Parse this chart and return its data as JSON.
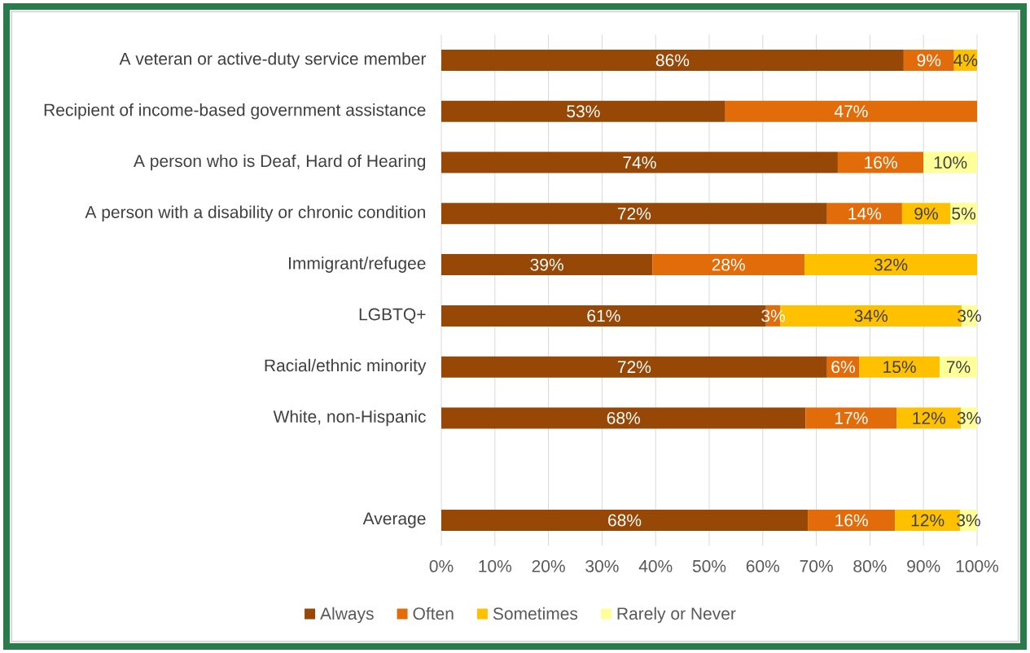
{
  "chart_data": {
    "type": "bar",
    "orientation": "horizontal",
    "stacked": true,
    "categories": [
      "A veteran or active-duty service member",
      "Recipient of income-based government assistance",
      "A person who is Deaf, Hard of Hearing",
      "A person with a disability or chronic condition",
      "Immigrant/refugee",
      "LGBTQ+",
      "Racial/ethnic minority",
      "White, non-Hispanic",
      null,
      "Average"
    ],
    "series": [
      {
        "name": "Always",
        "color": "#974706",
        "values": [
          86.3,
          53,
          74,
          72,
          39.4,
          60.6,
          72,
          68,
          null,
          68.4
        ],
        "value_labels": [
          "86%",
          "53%",
          "74%",
          "72%",
          "39%",
          "61%",
          "72%",
          "68%",
          null,
          "68%"
        ]
      },
      {
        "name": "Often",
        "color": "#e36c0a",
        "values": [
          9.4,
          47,
          16,
          14,
          28.4,
          2.7,
          6,
          17,
          null,
          16.3
        ],
        "value_labels": [
          "9%",
          "47%",
          "16%",
          "14%",
          "28%",
          "3%",
          "6%",
          "17%",
          null,
          "16%"
        ]
      },
      {
        "name": "Sometimes",
        "color": "#ffc000",
        "values": [
          4.3,
          null,
          null,
          9,
          32.2,
          33.8,
          15,
          12,
          null,
          12.1
        ],
        "value_labels": [
          "4%",
          null,
          null,
          "9%",
          "32%",
          "34%",
          "15%",
          "12%",
          null,
          "12%"
        ]
      },
      {
        "name": "Rarely or Never",
        "color": "#ffff99",
        "values": [
          null,
          null,
          10,
          5,
          null,
          2.9,
          7,
          3,
          null,
          3.2
        ],
        "value_labels": [
          null,
          null,
          "10%",
          "5%",
          null,
          "3%",
          "7%",
          "3%",
          null,
          "3%"
        ]
      }
    ],
    "xlim": [
      0,
      100
    ],
    "xticks": [
      {
        "value": 0,
        "label": "0%"
      },
      {
        "value": 10,
        "label": "10%"
      },
      {
        "value": 20,
        "label": "20%"
      },
      {
        "value": 30,
        "label": "30%"
      },
      {
        "value": 40,
        "label": "40%"
      },
      {
        "value": 50,
        "label": "50%"
      },
      {
        "value": 60,
        "label": "60%"
      },
      {
        "value": 70,
        "label": "70%"
      },
      {
        "value": 80,
        "label": "80%"
      },
      {
        "value": 90,
        "label": "90%"
      },
      {
        "value": 100,
        "label": "100%"
      }
    ],
    "grid": "x",
    "legend": "bottom"
  }
}
